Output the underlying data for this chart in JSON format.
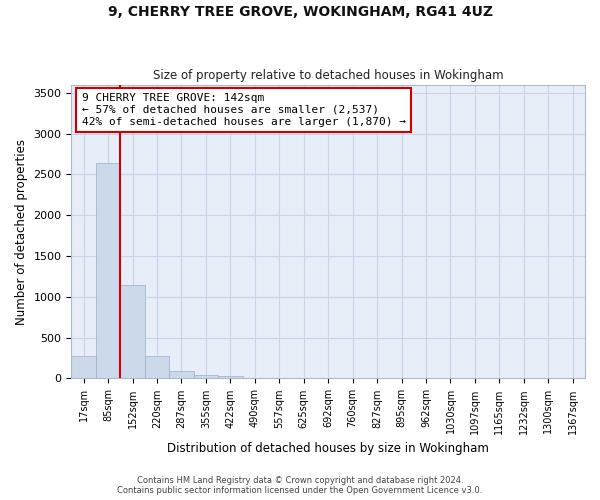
{
  "title": "9, CHERRY TREE GROVE, WOKINGHAM, RG41 4UZ",
  "subtitle": "Size of property relative to detached houses in Wokingham",
  "xlabel": "Distribution of detached houses by size in Wokingham",
  "ylabel": "Number of detached properties",
  "bar_labels": [
    "17sqm",
    "85sqm",
    "152sqm",
    "220sqm",
    "287sqm",
    "355sqm",
    "422sqm",
    "490sqm",
    "557sqm",
    "625sqm",
    "692sqm",
    "760sqm",
    "827sqm",
    "895sqm",
    "962sqm",
    "1030sqm",
    "1097sqm",
    "1165sqm",
    "1232sqm",
    "1300sqm",
    "1367sqm"
  ],
  "bar_values": [
    270,
    2640,
    1140,
    280,
    90,
    45,
    30,
    0,
    0,
    0,
    0,
    0,
    0,
    0,
    0,
    0,
    0,
    0,
    0,
    0,
    0
  ],
  "bar_color": "#ccd9ea",
  "bar_edge_color": "#99aec8",
  "grid_color": "#c8d4e8",
  "vline_x_index": 1.5,
  "vline_color": "#cc0000",
  "annotation_text": "9 CHERRY TREE GROVE: 142sqm\n← 57% of detached houses are smaller (2,537)\n42% of semi-detached houses are larger (1,870) →",
  "annotation_box_color": "#ffffff",
  "annotation_box_edge_color": "#cc0000",
  "ylim": [
    0,
    3600
  ],
  "yticks": [
    0,
    500,
    1000,
    1500,
    2000,
    2500,
    3000,
    3500
  ],
  "footer_line1": "Contains HM Land Registry data © Crown copyright and database right 2024.",
  "footer_line2": "Contains public sector information licensed under the Open Government Licence v3.0.",
  "bg_color": "#ffffff",
  "plot_bg_color": "#e8eef8"
}
